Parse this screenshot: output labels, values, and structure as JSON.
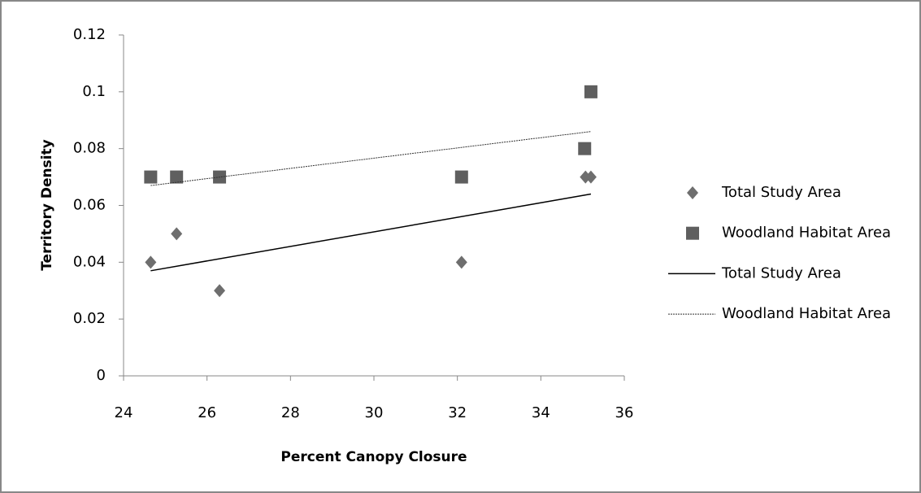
{
  "chart_data": {
    "type": "scatter",
    "xlabel": "Percent Canopy Closure",
    "ylabel": "Territory Density",
    "xlim": [
      24,
      36
    ],
    "xticks": [
      24,
      26,
      28,
      30,
      32,
      34,
      36
    ],
    "ylim": [
      0,
      0.12
    ],
    "yticks": [
      0,
      0.02,
      0.04,
      0.06,
      0.08,
      0.1,
      0.12
    ],
    "series": [
      {
        "name": "Total Study Area",
        "kind": "marker",
        "marker": "diamond",
        "color": "#6e6e6e",
        "x": [
          24.65,
          25.27,
          26.3,
          32.1,
          35.07,
          35.2
        ],
        "values": [
          0.04,
          0.05,
          0.03,
          0.04,
          0.07,
          0.07
        ]
      },
      {
        "name": "Woodland Habitat Area",
        "kind": "marker",
        "marker": "square",
        "color": "#5f5f5f",
        "x": [
          24.65,
          25.27,
          26.3,
          32.1,
          35.05,
          35.2
        ],
        "values": [
          0.07,
          0.07,
          0.07,
          0.07,
          0.08,
          0.1
        ]
      },
      {
        "name": "Total Study Area",
        "kind": "line",
        "dash": false,
        "color": "#000000",
        "x": [
          24.65,
          35.2
        ],
        "values": [
          0.037,
          0.064
        ]
      },
      {
        "name": "Woodland Habitat Area",
        "kind": "line",
        "dash": true,
        "color": "#333333",
        "x": [
          24.65,
          35.2
        ],
        "values": [
          0.067,
          0.086
        ]
      }
    ]
  }
}
